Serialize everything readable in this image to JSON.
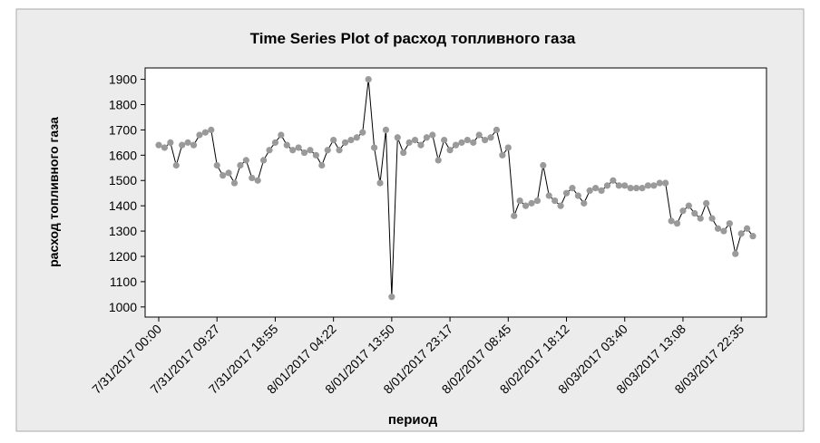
{
  "chart_data": {
    "type": "line",
    "title": "Time Series Plot of расход топливного газа",
    "x_label": "период",
    "y_label": "расход топливного газа",
    "categories": [
      "7/31/2017 00:00",
      null,
      null,
      null,
      null,
      null,
      null,
      null,
      null,
      null,
      "7/31/2017 09:27",
      null,
      null,
      null,
      null,
      null,
      null,
      null,
      null,
      null,
      "7/31/2017 18:55",
      null,
      null,
      null,
      null,
      null,
      null,
      null,
      null,
      null,
      "8/01/2017 04:22",
      null,
      null,
      null,
      null,
      null,
      null,
      null,
      null,
      null,
      "8/01/2017 13:50",
      null,
      null,
      null,
      null,
      null,
      null,
      null,
      null,
      null,
      "8/01/2017 23:17",
      null,
      null,
      null,
      null,
      null,
      null,
      null,
      null,
      null,
      "8/02/2017 08:45",
      null,
      null,
      null,
      null,
      null,
      null,
      null,
      null,
      null,
      "8/02/2017 18:12",
      null,
      null,
      null,
      null,
      null,
      null,
      null,
      null,
      null,
      "8/03/2017 03:40",
      null,
      null,
      null,
      null,
      null,
      null,
      null,
      null,
      null,
      "8/03/2017 13:08",
      null,
      null,
      null,
      null,
      null,
      null,
      null,
      null,
      null,
      "8/03/2017 22:35",
      null,
      null
    ],
    "values": [
      1640,
      1630,
      1650,
      1560,
      1640,
      1650,
      1640,
      1680,
      1690,
      1700,
      1560,
      1520,
      1530,
      1490,
      1560,
      1580,
      1510,
      1500,
      1580,
      1620,
      1650,
      1680,
      1640,
      1620,
      1630,
      1610,
      1620,
      1600,
      1560,
      1620,
      1660,
      1620,
      1650,
      1660,
      1670,
      1690,
      1900,
      1630,
      1490,
      1700,
      1040,
      1670,
      1610,
      1650,
      1660,
      1640,
      1670,
      1680,
      1580,
      1660,
      1620,
      1640,
      1650,
      1660,
      1650,
      1680,
      1660,
      1670,
      1700,
      1600,
      1630,
      1360,
      1420,
      1400,
      1410,
      1420,
      1560,
      1440,
      1420,
      1400,
      1450,
      1470,
      1440,
      1410,
      1460,
      1470,
      1460,
      1480,
      1500,
      1480,
      1480,
      1470,
      1470,
      1470,
      1480,
      1480,
      1490,
      1490,
      1340,
      1330,
      1380,
      1400,
      1370,
      1350,
      1410,
      1350,
      1310,
      1300,
      1330,
      1210,
      1290,
      1310,
      1280
    ],
    "color": "#9a9a9a",
    "line_color": "#000000",
    "ylim": [
      960,
      1945
    ],
    "yticks": [
      1000,
      1100,
      1200,
      1300,
      1400,
      1500,
      1600,
      1700,
      1800,
      1900
    ]
  }
}
